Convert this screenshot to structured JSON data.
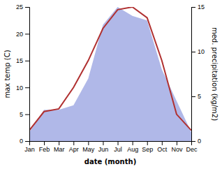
{
  "chart_data": {
    "type": "line",
    "categories": [
      "Jan",
      "Feb",
      "Mar",
      "Apr",
      "May",
      "Jun",
      "Jul",
      "Aug",
      "Sep",
      "Oct",
      "Nov",
      "Dec"
    ],
    "xlabel": "date (month)",
    "ylabel": "max temp (C)",
    "y2label": "med. precipitation (kg/m2)",
    "ylim": [
      0,
      25
    ],
    "yticks": [
      0,
      5,
      10,
      15,
      20,
      25
    ],
    "y2lim": [
      0,
      15
    ],
    "y2ticks": [
      0,
      5,
      10,
      15
    ],
    "grid": false,
    "series": [
      {
        "type": "area",
        "axis": "y2",
        "color": "#b0b8e8",
        "values": [
          1.0,
          3.5,
          3.5,
          4.0,
          7.0,
          13.0,
          15.0,
          14.0,
          13.5,
          8.0,
          4.5,
          1.0
        ]
      },
      {
        "type": "line",
        "color": "#b03030",
        "values": [
          2.0,
          5.5,
          6.0,
          10.0,
          15.0,
          21.0,
          24.5,
          25.0,
          23.0,
          15.0,
          5.0,
          2.0
        ]
      }
    ]
  }
}
